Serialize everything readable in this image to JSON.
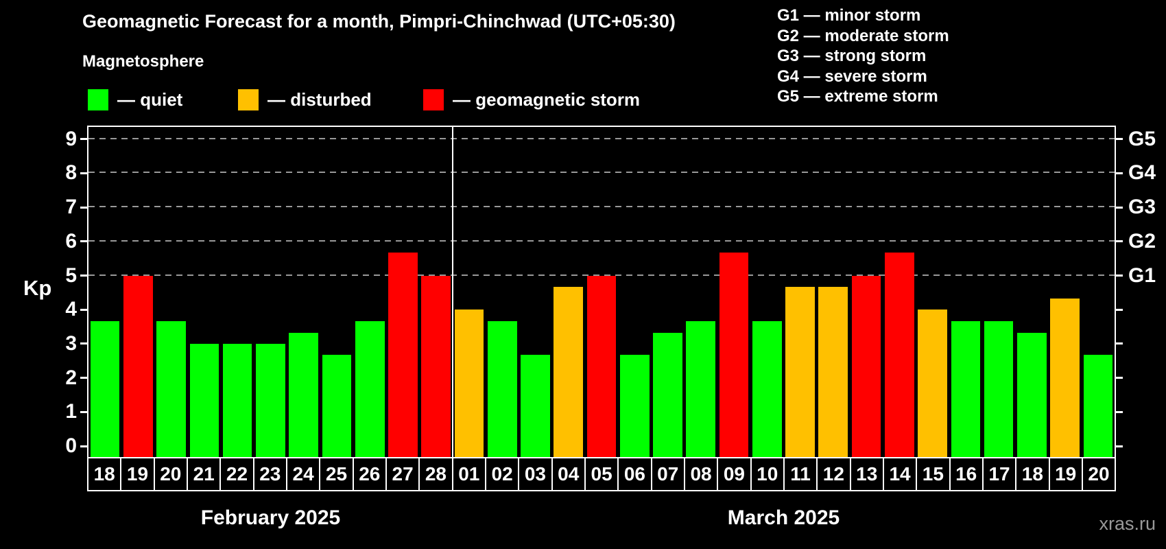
{
  "header": {
    "title": "Geomagnetic Forecast for a month, Pimpri-Chinchwad (UTC+05:30)",
    "subtitle": "Magnetosphere"
  },
  "g_legend": {
    "items": [
      "G1 — minor storm",
      "G2 — moderate storm",
      "G3 — strong storm",
      "G4 — severe storm",
      "G5 — extreme storm"
    ]
  },
  "watermark": "xras.ru",
  "chart_data": {
    "type": "bar",
    "ylabel": "Kp",
    "ylim": [
      0,
      9.6
    ],
    "yticks": [
      0,
      1,
      2,
      3,
      4,
      5,
      6,
      7,
      8,
      9
    ],
    "gridlines_kp": [
      5,
      6,
      7,
      8,
      9
    ],
    "grid_style": "dashed",
    "legend_position": "top-left",
    "colors": {
      "quiet": "#00ff00",
      "disturbed": "#ffc000",
      "storm": "#ff0000",
      "grid": "#999999",
      "axis": "#ffffff",
      "background": "#000000",
      "watermark": "#999999"
    },
    "legend": [
      {
        "label": "— quiet",
        "status": "quiet",
        "color": "#00ff00"
      },
      {
        "label": "— disturbed",
        "status": "disturbed",
        "color": "#ffc000"
      },
      {
        "label": "— geomagnetic storm",
        "status": "storm",
        "color": "#ff0000"
      }
    ],
    "right_axis": [
      {
        "label": "G1",
        "kp": 5
      },
      {
        "label": "G2",
        "kp": 6
      },
      {
        "label": "G3",
        "kp": 7
      },
      {
        "label": "G4",
        "kp": 8
      },
      {
        "label": "G5",
        "kp": 9
      }
    ],
    "months": [
      {
        "label": "February 2025",
        "days": [
          {
            "date": "18",
            "kp": 3.67,
            "status": "quiet"
          },
          {
            "date": "19",
            "kp": 5.0,
            "status": "storm"
          },
          {
            "date": "20",
            "kp": 3.67,
            "status": "quiet"
          },
          {
            "date": "21",
            "kp": 3.0,
            "status": "quiet"
          },
          {
            "date": "22",
            "kp": 3.0,
            "status": "quiet"
          },
          {
            "date": "23",
            "kp": 3.0,
            "status": "quiet"
          },
          {
            "date": "24",
            "kp": 3.33,
            "status": "quiet"
          },
          {
            "date": "25",
            "kp": 2.67,
            "status": "quiet"
          },
          {
            "date": "26",
            "kp": 3.67,
            "status": "quiet"
          },
          {
            "date": "27",
            "kp": 5.67,
            "status": "storm"
          },
          {
            "date": "28",
            "kp": 5.0,
            "status": "storm"
          }
        ]
      },
      {
        "label": "March 2025",
        "days": [
          {
            "date": "01",
            "kp": 4.0,
            "status": "disturbed"
          },
          {
            "date": "02",
            "kp": 3.67,
            "status": "quiet"
          },
          {
            "date": "03",
            "kp": 2.67,
            "status": "quiet"
          },
          {
            "date": "04",
            "kp": 4.67,
            "status": "disturbed"
          },
          {
            "date": "05",
            "kp": 5.0,
            "status": "storm"
          },
          {
            "date": "06",
            "kp": 2.67,
            "status": "quiet"
          },
          {
            "date": "07",
            "kp": 3.33,
            "status": "quiet"
          },
          {
            "date": "08",
            "kp": 3.67,
            "status": "quiet"
          },
          {
            "date": "09",
            "kp": 5.67,
            "status": "storm"
          },
          {
            "date": "10",
            "kp": 3.67,
            "status": "quiet"
          },
          {
            "date": "11",
            "kp": 4.67,
            "status": "disturbed"
          },
          {
            "date": "12",
            "kp": 4.67,
            "status": "disturbed"
          },
          {
            "date": "13",
            "kp": 5.0,
            "status": "storm"
          },
          {
            "date": "14",
            "kp": 5.67,
            "status": "storm"
          },
          {
            "date": "15",
            "kp": 4.0,
            "status": "disturbed"
          },
          {
            "date": "16",
            "kp": 3.67,
            "status": "quiet"
          },
          {
            "date": "17",
            "kp": 3.67,
            "status": "quiet"
          },
          {
            "date": "18",
            "kp": 3.33,
            "status": "quiet"
          },
          {
            "date": "19",
            "kp": 4.33,
            "status": "disturbed"
          },
          {
            "date": "20",
            "kp": 2.67,
            "status": "quiet"
          }
        ]
      }
    ]
  }
}
